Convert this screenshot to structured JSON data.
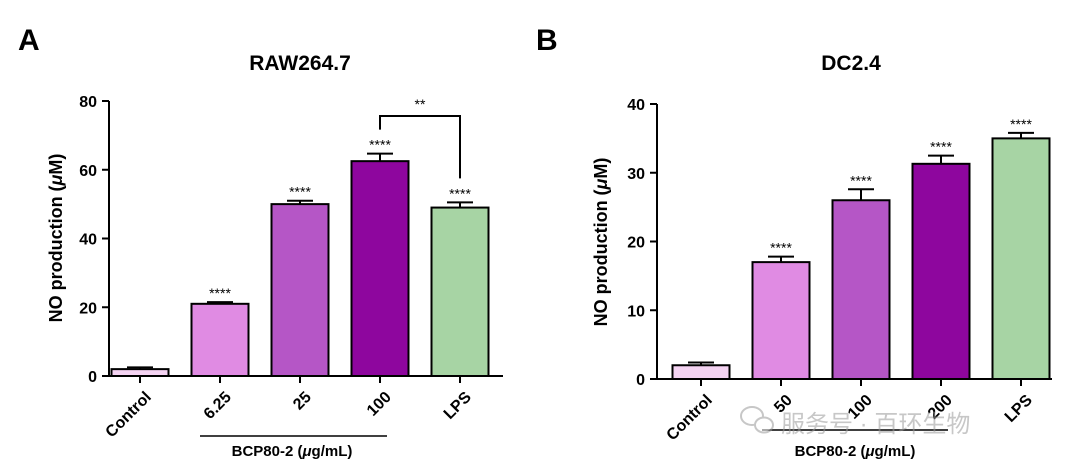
{
  "chart_data": [
    {
      "type": "bar",
      "panel_label": "A",
      "title": "RAW264.7",
      "ylabel_prefix": "NO production (",
      "ylabel_mu": "μ",
      "ylabel_suffix": "M)",
      "ylim": [
        0,
        80
      ],
      "yticks": [
        "0",
        "20",
        "40",
        "60",
        "80"
      ],
      "categories": [
        "Control",
        "6.25",
        "25",
        "100",
        "LPS"
      ],
      "values": [
        2,
        21,
        50,
        62.5,
        49
      ],
      "errors": [
        0.5,
        0.5,
        1.0,
        2.2,
        1.5
      ],
      "colors": [
        "#f4d3f2",
        "#e08be3",
        "#b556c6",
        "#8e069e",
        "#a7d4a4"
      ],
      "significance": [
        "",
        "****",
        "****",
        "****",
        "****"
      ],
      "bracket": {
        "from": 3,
        "to": 4,
        "label": "**"
      },
      "group_label_prefix": "BCP80-2 (",
      "group_label_mu": "μ",
      "group_label_suffix": "g/mL)"
    },
    {
      "type": "bar",
      "panel_label": "B",
      "title": "DC2.4",
      "ylabel_prefix": "NO production (",
      "ylabel_mu": "μ",
      "ylabel_suffix": "M)",
      "ylim": [
        0,
        40
      ],
      "yticks": [
        "0",
        "10",
        "20",
        "30",
        "40"
      ],
      "categories": [
        "Control",
        "50",
        "100",
        "200",
        "LPS"
      ],
      "values": [
        2,
        17,
        26,
        31.3,
        35
      ],
      "errors": [
        0.4,
        0.8,
        1.6,
        1.2,
        0.8
      ],
      "colors": [
        "#f4d3f2",
        "#e08be3",
        "#b556c6",
        "#8e069e",
        "#a7d4a4"
      ],
      "significance": [
        "",
        "****",
        "****",
        "****",
        "****"
      ],
      "group_label_prefix": "BCP80-2 (",
      "group_label_mu": "μ",
      "group_label_suffix": "g/mL)"
    }
  ],
  "watermark": "服务号 · 百环生物"
}
